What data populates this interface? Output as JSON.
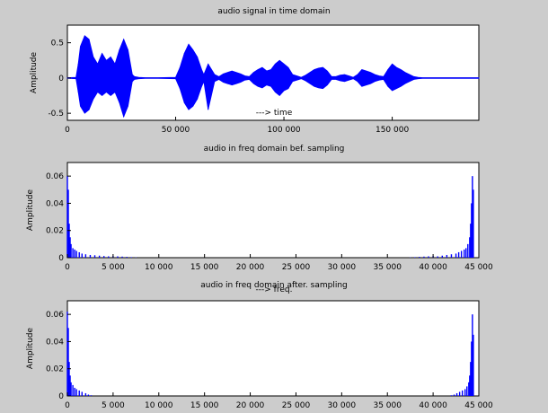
{
  "figure": {
    "background": "#cccccc",
    "plot_background": "#ffffff",
    "series_color": "#0000ff"
  },
  "chart_data": [
    {
      "type": "area",
      "title": "audio signal in time domain",
      "xlabel": "---> time",
      "ylabel": "Amplitude",
      "xlim": [
        0,
        190000
      ],
      "ylim": [
        -0.6,
        0.75
      ],
      "x_ticks": [
        0,
        50000,
        100000,
        150000
      ],
      "x_tick_labels": [
        "0",
        "50 000",
        "100 000",
        "150 000"
      ],
      "y_ticks": [
        -0.5,
        0,
        0.5
      ],
      "y_tick_labels": [
        "-0.5",
        "0",
        "0.5"
      ],
      "grid": false,
      "series": [
        {
          "x": [
            0,
            4000,
            5000,
            6000,
            8000,
            10000,
            12000,
            14000,
            16000,
            18000,
            20000,
            22000,
            24000,
            26000,
            28000,
            30000,
            31000,
            33000,
            36000,
            42000,
            50000,
            52000,
            54000,
            56000,
            58000,
            60000,
            62000,
            63000,
            65000,
            68000,
            70000,
            72000,
            74000,
            76000,
            78000,
            80000,
            82000,
            84000,
            86000,
            88000,
            90000,
            92000,
            94000,
            96000,
            98000,
            100000,
            102000,
            104000,
            106000,
            108000,
            110000,
            112000,
            114000,
            116000,
            118000,
            120000,
            122000,
            124000,
            126000,
            128000,
            130000,
            132000,
            134000,
            136000,
            138000,
            140000,
            142000,
            144000,
            146000,
            148000,
            150000,
            152000,
            154000,
            156000,
            158000,
            160000,
            162000,
            164000,
            166000,
            170000,
            178000,
            190000
          ],
          "upper": [
            0.005,
            0.01,
            0.2,
            0.45,
            0.6,
            0.55,
            0.3,
            0.2,
            0.35,
            0.25,
            0.3,
            0.2,
            0.4,
            0.55,
            0.4,
            0.05,
            0.02,
            0.01,
            0.005,
            0.005,
            0.01,
            0.15,
            0.35,
            0.48,
            0.4,
            0.3,
            0.12,
            0.05,
            0.2,
            0.05,
            0.02,
            0.06,
            0.08,
            0.1,
            0.08,
            0.06,
            0.03,
            0.02,
            0.08,
            0.12,
            0.15,
            0.1,
            0.12,
            0.2,
            0.25,
            0.2,
            0.15,
            0.05,
            0.03,
            0.01,
            0.04,
            0.08,
            0.12,
            0.14,
            0.15,
            0.1,
            0.02,
            0.02,
            0.04,
            0.05,
            0.03,
            0.01,
            0.05,
            0.12,
            0.1,
            0.08,
            0.05,
            0.03,
            0.02,
            0.12,
            0.2,
            0.15,
            0.12,
            0.08,
            0.05,
            0.02,
            0.01,
            0.005,
            0.005,
            0.005,
            0.005,
            0.005
          ],
          "lower": [
            -0.005,
            -0.01,
            -0.2,
            -0.4,
            -0.5,
            -0.45,
            -0.3,
            -0.2,
            -0.25,
            -0.2,
            -0.25,
            -0.2,
            -0.35,
            -0.55,
            -0.4,
            -0.05,
            -0.02,
            -0.01,
            -0.005,
            -0.005,
            -0.01,
            -0.15,
            -0.35,
            -0.45,
            -0.4,
            -0.3,
            -0.12,
            -0.05,
            -0.45,
            -0.05,
            -0.02,
            -0.06,
            -0.08,
            -0.1,
            -0.08,
            -0.06,
            -0.03,
            -0.02,
            -0.08,
            -0.12,
            -0.14,
            -0.1,
            -0.12,
            -0.2,
            -0.25,
            -0.18,
            -0.15,
            -0.05,
            -0.03,
            -0.01,
            -0.04,
            -0.08,
            -0.12,
            -0.14,
            -0.15,
            -0.1,
            -0.02,
            -0.02,
            -0.04,
            -0.05,
            -0.03,
            -0.01,
            -0.05,
            -0.12,
            -0.1,
            -0.08,
            -0.05,
            -0.03,
            -0.02,
            -0.12,
            -0.18,
            -0.15,
            -0.12,
            -0.08,
            -0.05,
            -0.02,
            -0.01,
            -0.005,
            -0.005,
            -0.005,
            -0.005,
            -0.005
          ]
        }
      ]
    },
    {
      "type": "bar",
      "title": "audio in freq domain bef. sampling",
      "xlabel": "---> freq.",
      "ylabel": "Amplitude",
      "xlim": [
        0,
        45000
      ],
      "ylim": [
        0,
        0.07
      ],
      "x_ticks": [
        0,
        5000,
        10000,
        15000,
        20000,
        25000,
        30000,
        35000,
        40000,
        45000
      ],
      "x_tick_labels": [
        "0",
        "5 000",
        "10 000",
        "15 000",
        "20 000",
        "25 000",
        "30 000",
        "35 000",
        "40 000",
        "45 000"
      ],
      "y_ticks": [
        0,
        0.02,
        0.04,
        0.06
      ],
      "y_tick_labels": [
        "0",
        "0.02",
        "0.04",
        "0.06"
      ],
      "grid": false,
      "series": [
        {
          "x": [
            0,
            100,
            200,
            300,
            400,
            600,
            800,
            1000,
            1300,
            1600,
            2000,
            2500,
            3000,
            3500,
            4000,
            4500,
            5000,
            5500,
            6000,
            6500,
            7000,
            7500,
            37500,
            38000,
            38500,
            39000,
            39500,
            40000,
            40500,
            41000,
            41500,
            42000,
            42500,
            42800,
            43100,
            43400,
            43600,
            43800,
            44000,
            44100,
            44200,
            44300,
            44400
          ],
          "values": [
            0.06,
            0.05,
            0.025,
            0.015,
            0.01,
            0.007,
            0.006,
            0.005,
            0.004,
            0.003,
            0.0025,
            0.002,
            0.0018,
            0.0015,
            0.0012,
            0.001,
            0.0012,
            0.001,
            0.0008,
            0.0006,
            0.0004,
            0.0002,
            0.0002,
            0.0004,
            0.0006,
            0.0008,
            0.001,
            0.0012,
            0.001,
            0.0015,
            0.002,
            0.0025,
            0.003,
            0.004,
            0.005,
            0.006,
            0.007,
            0.01,
            0.015,
            0.025,
            0.04,
            0.06,
            0.05
          ]
        }
      ]
    },
    {
      "type": "bar",
      "title": "audio in freq domain after. sampling",
      "xlabel": "",
      "ylabel": "Amplitude",
      "xlim": [
        0,
        45000
      ],
      "ylim": [
        0,
        0.07
      ],
      "x_ticks": [
        0,
        5000,
        10000,
        15000,
        20000,
        25000,
        30000,
        35000,
        40000,
        45000
      ],
      "x_tick_labels": [
        "0",
        "5 000",
        "10 000",
        "15 000",
        "20 000",
        "25 000",
        "30 000",
        "35 000",
        "40 000",
        "45 000"
      ],
      "y_ticks": [
        0,
        0.02,
        0.04,
        0.06
      ],
      "y_tick_labels": [
        "0",
        "0.02",
        "0.04",
        "0.06"
      ],
      "grid": false,
      "series": [
        {
          "x": [
            0,
            100,
            200,
            300,
            400,
            600,
            800,
            1000,
            1300,
            1600,
            2000,
            2300,
            2600,
            42000,
            42300,
            42600,
            42900,
            43200,
            43500,
            43700,
            43900,
            44000,
            44100,
            44200,
            44300,
            44400
          ],
          "values": [
            0.062,
            0.05,
            0.025,
            0.015,
            0.01,
            0.008,
            0.006,
            0.005,
            0.004,
            0.003,
            0.002,
            0.001,
            0.0005,
            0.0005,
            0.001,
            0.002,
            0.003,
            0.004,
            0.005,
            0.007,
            0.01,
            0.015,
            0.025,
            0.04,
            0.06,
            0.045
          ]
        }
      ]
    }
  ]
}
